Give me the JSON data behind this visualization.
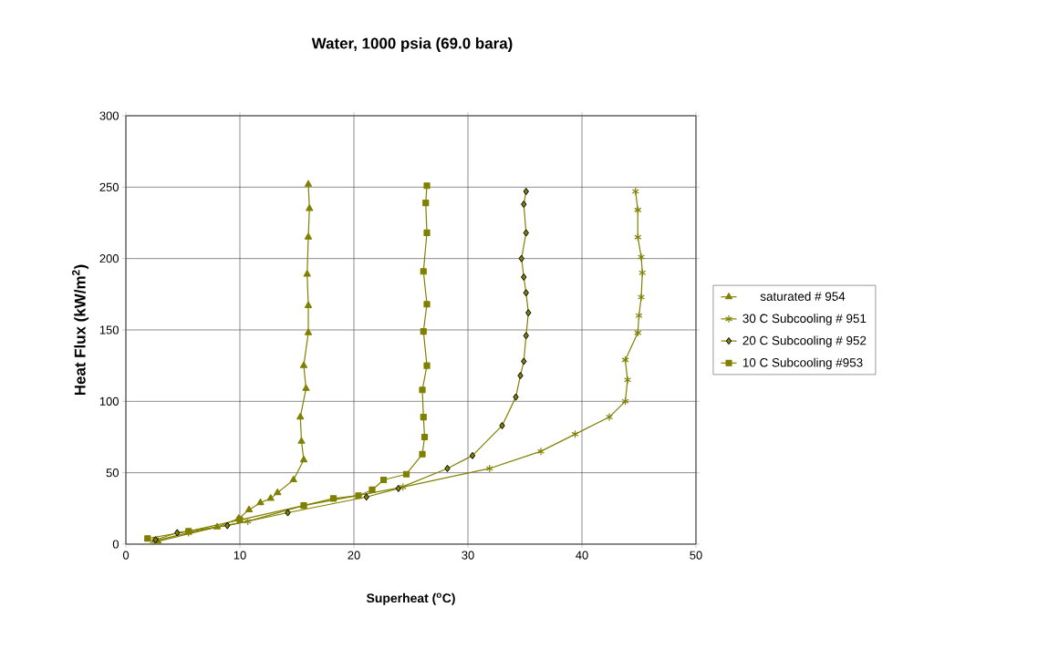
{
  "chart_data": {
    "type": "line",
    "title": "Water, 1000 psia (69.0 bara)",
    "xlabel": "Superheat ($^{o}$C)",
    "ylabel": "Heat Flux (kW/m$^{2}$)",
    "xlim": [
      0,
      50
    ],
    "ylim": [
      0,
      300
    ],
    "xticks": [
      0,
      10,
      20,
      30,
      40,
      50
    ],
    "yticks": [
      0,
      50,
      100,
      150,
      200,
      250,
      300
    ],
    "grid": true,
    "legend": "right",
    "line_style": "solid",
    "series": [
      {
        "name": "saturated # 954",
        "color": "#808000",
        "marker": "triangle",
        "x": [
          2.8,
          8.0,
          9.9,
          10.8,
          11.8,
          12.7,
          13.3,
          14.7,
          15.6,
          15.4,
          15.3,
          15.8,
          15.6,
          16.0,
          16.0,
          15.9,
          16.0,
          16.1,
          16.0
        ],
        "values": [
          2,
          12,
          18,
          24,
          29,
          32,
          36,
          45,
          59,
          72,
          89,
          109,
          125,
          148,
          167,
          189,
          215,
          235,
          252
        ]
      },
      {
        "name": " 30 C Subcooling # 951",
        "color": "#808000",
        "marker": "cross",
        "x": [
          2.4,
          5.5,
          10.7,
          15.6,
          24.3,
          31.9,
          36.4,
          39.4,
          42.4,
          43.8,
          44.0,
          43.8,
          44.9,
          45.0,
          45.2,
          45.3,
          45.2,
          44.9,
          44.9,
          44.7
        ],
        "values": [
          2,
          8,
          16,
          27,
          40,
          53,
          65,
          77,
          89,
          100,
          115,
          129,
          148,
          160,
          173,
          190,
          201,
          215,
          234,
          247
        ]
      },
      {
        "name": " 20 C Subcooling # 952",
        "color": "#808000",
        "marker": "diamond",
        "x": [
          2.6,
          4.5,
          8.9,
          14.2,
          21.1,
          23.9,
          28.2,
          30.4,
          33.0,
          34.2,
          34.6,
          34.9,
          35.1,
          35.3,
          35.1,
          34.9,
          34.7,
          35.1,
          34.9,
          35.1
        ],
        "values": [
          3,
          8,
          13,
          22,
          33,
          39,
          53,
          62,
          83,
          103,
          118,
          128,
          146,
          162,
          176,
          187,
          200,
          218,
          238,
          247
        ]
      },
      {
        "name": "10 C  Subcooling #953",
        "color": "#808000",
        "marker": "square",
        "x": [
          1.9,
          5.5,
          10.0,
          15.6,
          18.2,
          20.4,
          21.6,
          22.6,
          24.6,
          26.0,
          26.2,
          26.1,
          26.0,
          26.4,
          26.1,
          26.4,
          26.1,
          26.4,
          26.3,
          26.4
        ],
        "values": [
          4,
          9,
          17,
          27,
          32,
          34,
          38,
          45,
          49,
          63,
          75,
          89,
          108,
          125,
          149,
          168,
          191,
          218,
          239,
          251
        ]
      }
    ]
  }
}
